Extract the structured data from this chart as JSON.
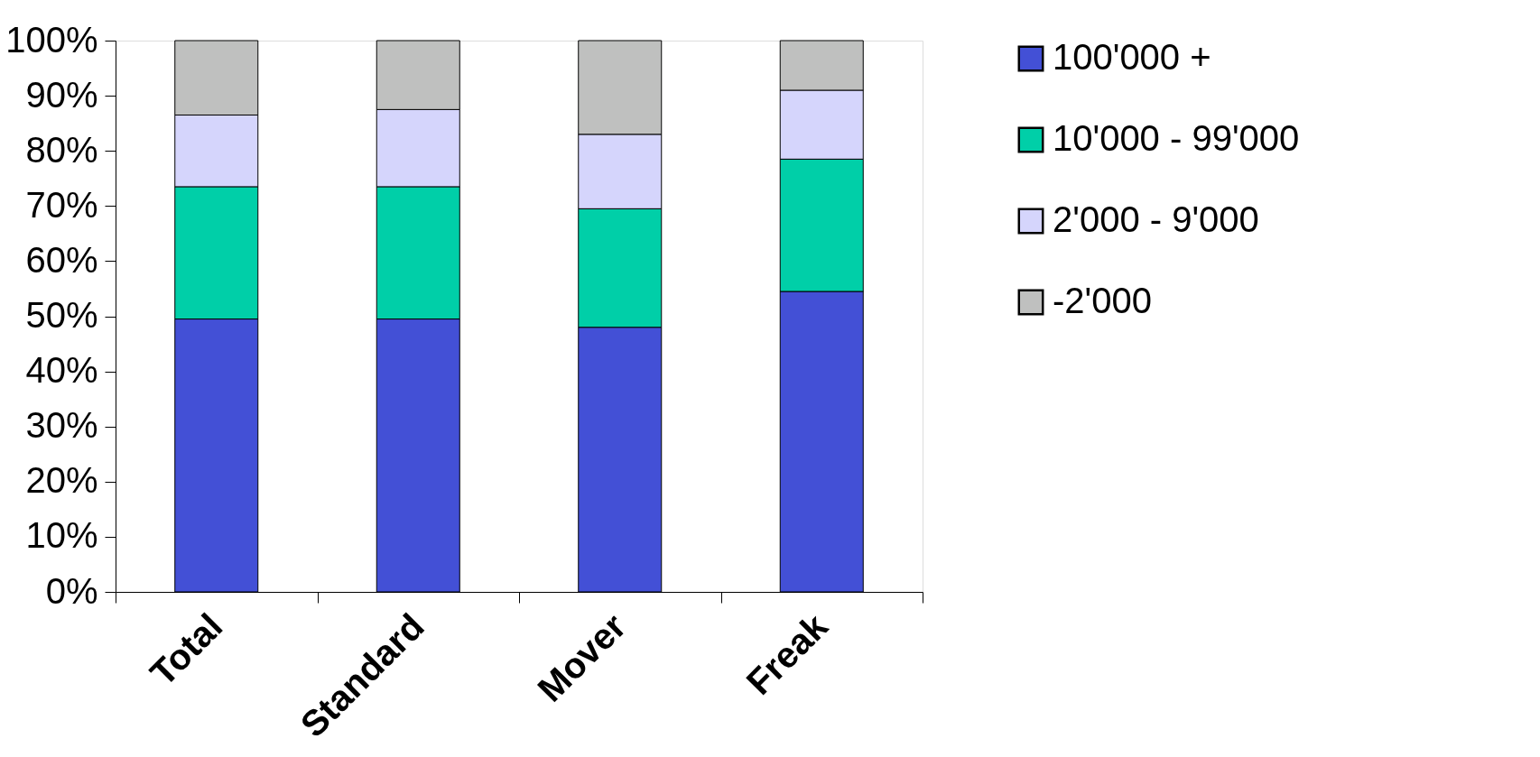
{
  "chart_data": {
    "type": "bar",
    "stacked": true,
    "categories": [
      "Total",
      "Standard",
      "Mover",
      "Freak"
    ],
    "series": [
      {
        "name": "100'000 +",
        "color": "#4350d6",
        "values": [
          49.5,
          49.5,
          48,
          54.5
        ]
      },
      {
        "name": "10'000 - 99'000",
        "color": "#00cfa8",
        "values": [
          24,
          24,
          21.5,
          24
        ]
      },
      {
        "name": "2'000 - 9'000",
        "color": "#d5d5fc",
        "values": [
          13,
          14,
          13.5,
          12.5
        ]
      },
      {
        "name": "-2'000",
        "color": "#bfc0bf",
        "values": [
          13.5,
          12.5,
          17,
          9
        ]
      }
    ],
    "ylim": [
      0,
      100
    ],
    "yticks": [
      {
        "value": 0,
        "label": "0%"
      },
      {
        "value": 10,
        "label": "10%"
      },
      {
        "value": 20,
        "label": "20%"
      },
      {
        "value": 30,
        "label": "30%"
      },
      {
        "value": 40,
        "label": "40%"
      },
      {
        "value": 50,
        "label": "50%"
      },
      {
        "value": 60,
        "label": "60%"
      },
      {
        "value": 70,
        "label": "70%"
      },
      {
        "value": 80,
        "label": "80%"
      },
      {
        "value": 90,
        "label": "90%"
      },
      {
        "value": 100,
        "label": "100%"
      }
    ],
    "grid": false,
    "legend": "right"
  }
}
